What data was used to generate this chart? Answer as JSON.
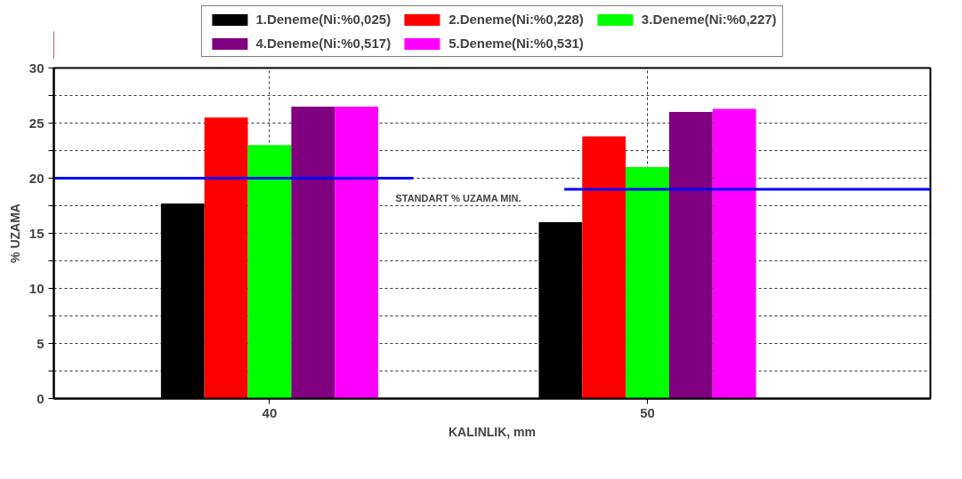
{
  "chart_data": {
    "type": "bar",
    "xlabel": "KALINLIK, mm",
    "ylabel": "% UZAMA",
    "categories": [
      "40",
      "50"
    ],
    "series": [
      {
        "name": "1.Deneme(Ni:%0,025)",
        "color": "#000000",
        "values": [
          17.7,
          16.0
        ]
      },
      {
        "name": "2.Deneme(Ni:%0,228)",
        "color": "#ff0000",
        "values": [
          25.5,
          23.8
        ]
      },
      {
        "name": "3.Deneme(Ni:%0,227)",
        "color": "#00ff00",
        "values": [
          23.0,
          21.0
        ]
      },
      {
        "name": "4.Deneme(Ni:%0,517)",
        "color": "#800080",
        "values": [
          26.5,
          26.0
        ]
      },
      {
        "name": "5.Deneme(Ni:%0,531)",
        "color": "#ff00ff",
        "values": [
          26.5,
          26.3
        ]
      }
    ],
    "ylim": [
      0,
      30
    ],
    "yticks": [
      0,
      {
        "value": 2.5,
        "label": null
      },
      5,
      {
        "value": 7.5,
        "label": null
      },
      10,
      {
        "value": 12.5,
        "label": null
      },
      15,
      {
        "value": 17.5,
        "label": null
      },
      20,
      {
        "value": 22.5,
        "label": null
      },
      25,
      {
        "value": 27.5,
        "label": null
      },
      30
    ],
    "ref_lines": [
      {
        "axis": "y",
        "value": 20,
        "color": "#0000ff"
      },
      {
        "axis": "y",
        "value": 19,
        "color": "#0000ff"
      }
    ],
    "annotations": [
      "STANDART % UZAMA MIN."
    ],
    "grid": true,
    "legend": "top"
  }
}
